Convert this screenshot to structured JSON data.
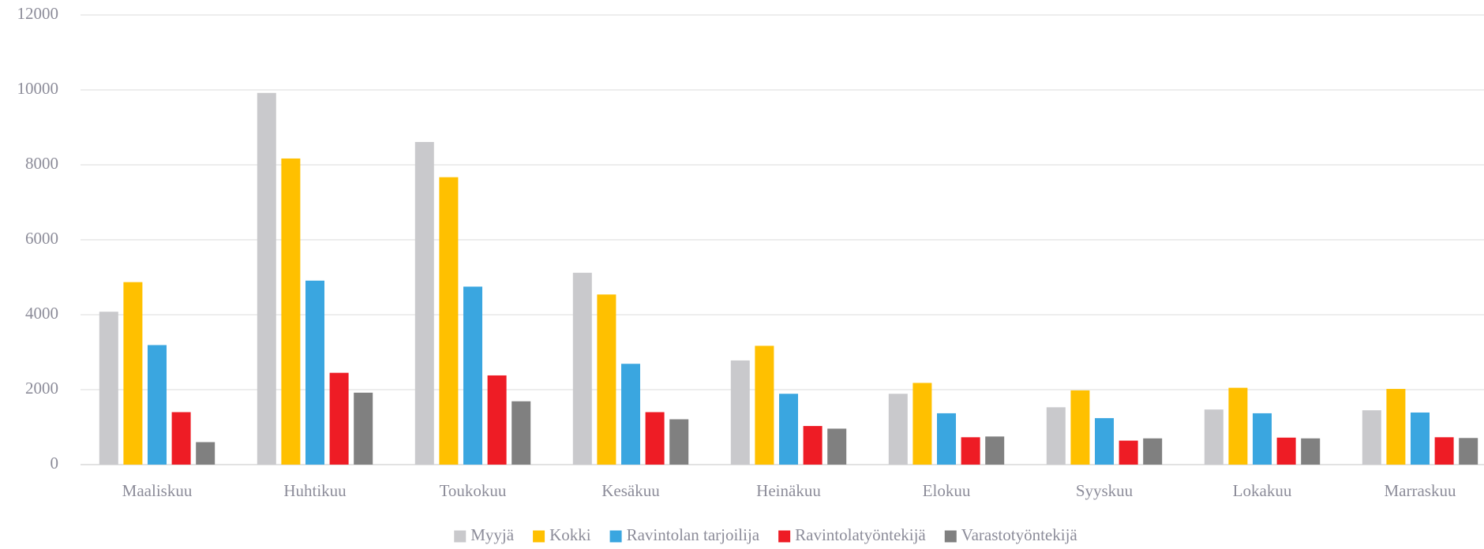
{
  "chart_data": {
    "type": "bar",
    "categories": [
      "Maaliskuu",
      "Huhtikuu",
      "Toukokuu",
      "Kesäkuu",
      "Heinäkuu",
      "Elokuu",
      "Syyskuu",
      "Lokakuu",
      "Marraskuu"
    ],
    "series": [
      {
        "name": "Myyjä",
        "color": "#c9c9cc",
        "values": [
          4080,
          9920,
          8610,
          5120,
          2780,
          1890,
          1530,
          1470,
          1450
        ]
      },
      {
        "name": "Kokki",
        "color": "#ffc000",
        "values": [
          4870,
          8170,
          7670,
          4540,
          3170,
          2180,
          1980,
          2050,
          2020
        ]
      },
      {
        "name": "Ravintolan tarjoilija",
        "color": "#3aa6e0",
        "values": [
          3190,
          4910,
          4750,
          2690,
          1890,
          1370,
          1240,
          1370,
          1390
        ]
      },
      {
        "name": "Ravintolatyöntekijä",
        "color": "#ee1c25",
        "values": [
          1400,
          2450,
          2380,
          1400,
          1030,
          730,
          640,
          720,
          730
        ]
      },
      {
        "name": "Varastotyöntekijä",
        "color": "#808080",
        "values": [
          600,
          1920,
          1690,
          1210,
          960,
          750,
          700,
          700,
          710
        ]
      }
    ],
    "ylim": [
      0,
      12000
    ],
    "yticks": [
      0,
      2000,
      4000,
      6000,
      8000,
      10000,
      12000
    ],
    "grid": true,
    "legend": "bottom"
  }
}
